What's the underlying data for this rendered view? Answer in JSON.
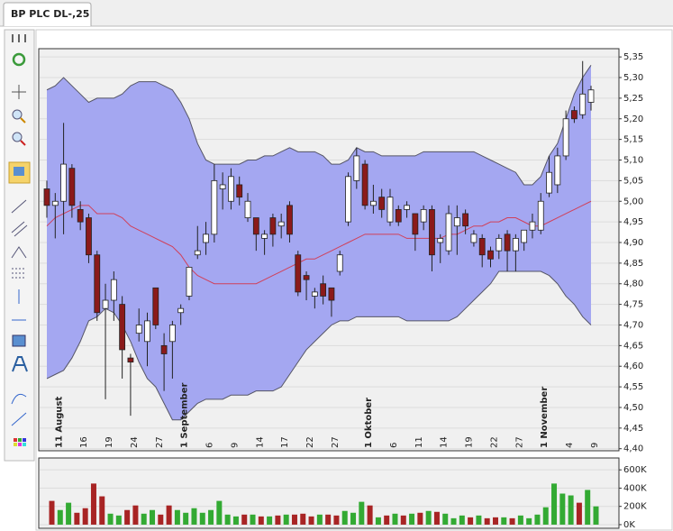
{
  "chart_data": [
    {
      "type": "candlestick",
      "title": "BP PLC DL-,25",
      "categories": [
        null,
        "11 August",
        null,
        null,
        "16",
        null,
        null,
        "19",
        null,
        null,
        "24",
        null,
        null,
        "27",
        null,
        null,
        "1 September",
        null,
        null,
        "6",
        null,
        null,
        "9",
        null,
        null,
        "14",
        null,
        null,
        "17",
        null,
        null,
        "22",
        null,
        null,
        "27",
        null,
        null,
        null,
        "1 Oktober",
        null,
        null,
        "6",
        null,
        null,
        "11",
        null,
        null,
        "14",
        null,
        null,
        "19",
        null,
        null,
        "22",
        null,
        null,
        "27",
        null,
        null,
        "1 November",
        null,
        null,
        "4",
        null,
        null,
        "9"
      ],
      "open": [
        5.03,
        4.99,
        5.0,
        5.08,
        4.98,
        4.96,
        4.87,
        4.74,
        4.76,
        4.75,
        4.62,
        4.68,
        4.66,
        4.79,
        4.65,
        4.66,
        4.73,
        4.77,
        4.87,
        4.9,
        4.92,
        5.03,
        5.0,
        5.04,
        4.96,
        4.96,
        4.91,
        4.96,
        4.94,
        4.99,
        4.87,
        4.82,
        4.77,
        4.8,
        4.79,
        4.83,
        4.95,
        5.05,
        5.09,
        4.99,
        5.01,
        4.95,
        4.98,
        4.98,
        4.97,
        4.95,
        4.98,
        4.9,
        4.88,
        4.94,
        4.97,
        4.9,
        4.91,
        4.88,
        4.88,
        4.92,
        4.88,
        4.9,
        4.93,
        4.93,
        5.02,
        5.04,
        5.11,
        5.22,
        5.21,
        5.24
      ],
      "high": [
        5.05,
        5.02,
        5.19,
        5.09,
        5.0,
        4.97,
        4.88,
        4.8,
        4.83,
        4.77,
        4.63,
        4.74,
        4.73,
        4.79,
        4.68,
        4.71,
        4.75,
        4.84,
        4.94,
        4.95,
        5.09,
        5.07,
        5.08,
        5.06,
        5.02,
        4.96,
        4.93,
        4.97,
        4.97,
        5.0,
        4.88,
        4.83,
        4.79,
        4.82,
        4.79,
        4.88,
        5.07,
        5.13,
        5.1,
        5.04,
        5.03,
        5.03,
        4.99,
        5.0,
        4.97,
        4.99,
        4.99,
        4.92,
        4.99,
        4.99,
        4.98,
        4.93,
        4.92,
        4.89,
        4.92,
        4.93,
        4.92,
        4.93,
        4.97,
        5.02,
        5.11,
        5.13,
        5.22,
        5.23,
        5.34,
        5.28
      ],
      "low": [
        4.96,
        4.91,
        4.92,
        4.96,
        4.93,
        4.85,
        4.71,
        4.52,
        4.71,
        4.57,
        4.48,
        4.66,
        4.6,
        4.69,
        4.54,
        4.57,
        4.7,
        4.76,
        4.86,
        4.87,
        4.9,
        4.98,
        4.98,
        4.99,
        4.95,
        4.88,
        4.87,
        4.89,
        4.91,
        4.9,
        4.77,
        4.76,
        4.74,
        4.75,
        4.72,
        4.82,
        4.94,
        5.03,
        4.98,
        4.97,
        4.96,
        4.94,
        4.94,
        4.96,
        4.88,
        4.93,
        4.83,
        4.85,
        4.87,
        4.87,
        4.92,
        4.89,
        4.84,
        4.84,
        4.86,
        4.83,
        4.83,
        4.88,
        4.91,
        4.92,
        5.01,
        5.02,
        5.1,
        5.19,
        5.2,
        5.22
      ],
      "close": [
        4.99,
        5.0,
        5.09,
        4.99,
        4.95,
        4.87,
        4.73,
        4.76,
        4.81,
        4.64,
        4.61,
        4.7,
        4.71,
        4.7,
        4.63,
        4.7,
        4.74,
        4.84,
        4.88,
        4.92,
        5.05,
        5.04,
        5.06,
        5.01,
        5.0,
        4.92,
        4.92,
        4.92,
        4.95,
        4.92,
        4.78,
        4.81,
        4.78,
        4.77,
        4.76,
        4.87,
        5.06,
        5.11,
        4.99,
        5.0,
        4.98,
        5.01,
        4.95,
        4.99,
        4.92,
        4.98,
        4.87,
        4.91,
        4.97,
        4.96,
        4.94,
        4.92,
        4.87,
        4.86,
        4.91,
        4.88,
        4.91,
        4.93,
        4.95,
        5.0,
        5.07,
        5.11,
        5.2,
        5.2,
        5.26,
        5.27
      ],
      "up_color": "#ffffff",
      "down_color": "#8b1a1a",
      "band_fill": "#a4a7f1",
      "bands": [
        {
          "color": "#555566",
          "values": [
            5.27,
            5.28,
            5.3,
            5.28,
            5.26,
            5.24,
            5.25,
            5.25,
            5.25,
            5.26,
            5.28,
            5.29,
            5.29,
            5.29,
            5.28,
            5.27,
            5.24,
            5.2,
            5.14,
            5.1,
            5.09,
            5.09,
            5.09,
            5.09,
            5.1,
            5.1,
            5.11,
            5.11,
            5.12,
            5.13,
            5.12,
            5.12,
            5.12,
            5.11,
            5.09,
            5.09,
            5.1,
            5.13,
            5.12,
            5.12,
            5.11,
            5.11,
            5.11,
            5.11,
            5.11,
            5.12,
            5.12,
            5.12,
            5.12,
            5.12,
            5.12,
            5.12,
            5.11,
            5.1,
            5.09,
            5.08,
            5.07,
            5.04,
            5.04,
            5.06,
            5.11,
            5.14,
            5.2,
            5.26,
            5.3,
            5.33
          ]
        },
        {
          "color": "#d0405a",
          "values": [
            4.94,
            4.96,
            4.97,
            4.98,
            4.99,
            4.99,
            4.97,
            4.97,
            4.97,
            4.96,
            4.94,
            4.93,
            4.92,
            4.91,
            4.9,
            4.89,
            4.87,
            4.84,
            4.82,
            4.81,
            4.8,
            4.8,
            4.8,
            4.8,
            4.8,
            4.8,
            4.81,
            4.82,
            4.83,
            4.84,
            4.85,
            4.86,
            4.86,
            4.87,
            4.88,
            4.89,
            4.9,
            4.91,
            4.92,
            4.92,
            4.92,
            4.92,
            4.92,
            4.91,
            4.91,
            4.91,
            4.91,
            4.91,
            4.92,
            4.92,
            4.93,
            4.94,
            4.94,
            4.95,
            4.95,
            4.96,
            4.96,
            4.95,
            4.94,
            4.94,
            4.95,
            4.96,
            4.97,
            4.98,
            4.99,
            5.0
          ]
        },
        {
          "color": "#555566",
          "values": [
            4.57,
            4.58,
            4.59,
            4.62,
            4.66,
            4.71,
            4.72,
            4.74,
            4.73,
            4.7,
            4.66,
            4.61,
            4.57,
            4.55,
            4.51,
            4.47,
            4.47,
            4.49,
            4.51,
            4.52,
            4.52,
            4.52,
            4.53,
            4.53,
            4.53,
            4.54,
            4.54,
            4.54,
            4.55,
            4.58,
            4.61,
            4.64,
            4.66,
            4.68,
            4.7,
            4.71,
            4.71,
            4.72,
            4.72,
            4.72,
            4.72,
            4.72,
            4.72,
            4.71,
            4.71,
            4.71,
            4.71,
            4.71,
            4.71,
            4.72,
            4.74,
            4.76,
            4.78,
            4.8,
            4.83,
            4.83,
            4.83,
            4.83,
            4.83,
            4.83,
            4.82,
            4.8,
            4.77,
            4.75,
            4.72,
            4.7
          ]
        }
      ],
      "ylim": [
        4.395,
        5.37
      ],
      "yticks": [
        {
          "value": 4.4,
          "label": "4,40"
        },
        {
          "value": 4.45,
          "label": "4,45"
        },
        {
          "value": 4.5,
          "label": "4,50"
        },
        {
          "value": 4.55,
          "label": "4,55"
        },
        {
          "value": 4.6,
          "label": "4,60"
        },
        {
          "value": 4.65,
          "label": "4,65"
        },
        {
          "value": 4.7,
          "label": "4,70"
        },
        {
          "value": 4.75,
          "label": "4,75"
        },
        {
          "value": 4.8,
          "label": "4,80"
        },
        {
          "value": 4.85,
          "label": "4,85"
        },
        {
          "value": 4.9,
          "label": "4,90"
        },
        {
          "value": 4.95,
          "label": "4,95"
        },
        {
          "value": 5.0,
          "label": "5,00"
        },
        {
          "value": 5.05,
          "label": "5,05"
        },
        {
          "value": 5.1,
          "label": "5,10"
        },
        {
          "value": 5.15,
          "label": "5,15"
        },
        {
          "value": 5.2,
          "label": "5,20"
        },
        {
          "value": 5.25,
          "label": "5,25"
        },
        {
          "value": 5.3,
          "label": "5,30"
        },
        {
          "value": 5.35,
          "label": "5,35"
        }
      ],
      "grid": true
    },
    {
      "type": "bar",
      "values": [
        260000,
        160000,
        240000,
        130000,
        180000,
        450000,
        310000,
        120000,
        100000,
        160000,
        210000,
        120000,
        160000,
        110000,
        210000,
        160000,
        130000,
        180000,
        130000,
        160000,
        260000,
        110000,
        90000,
        110000,
        110000,
        90000,
        90000,
        100000,
        110000,
        110000,
        120000,
        90000,
        110000,
        110000,
        100000,
        150000,
        130000,
        250000,
        210000,
        80000,
        100000,
        120000,
        100000,
        120000,
        130000,
        150000,
        140000,
        120000,
        70000,
        100000,
        80000,
        100000,
        70000,
        80000,
        80000,
        70000,
        100000,
        70000,
        110000,
        190000,
        450000,
        340000,
        320000,
        240000,
        380000,
        200000
      ],
      "up_color": "#33aa33",
      "down_color": "#a82424",
      "flat_color": "#999999",
      "ylim": [
        -40000,
        730000
      ],
      "yticks": [
        {
          "value": 0,
          "label": "0K"
        },
        {
          "value": 200000,
          "label": "200K"
        },
        {
          "value": 400000,
          "label": "400K"
        },
        {
          "value": 600000,
          "label": "600K"
        }
      ],
      "grid": true
    }
  ]
}
